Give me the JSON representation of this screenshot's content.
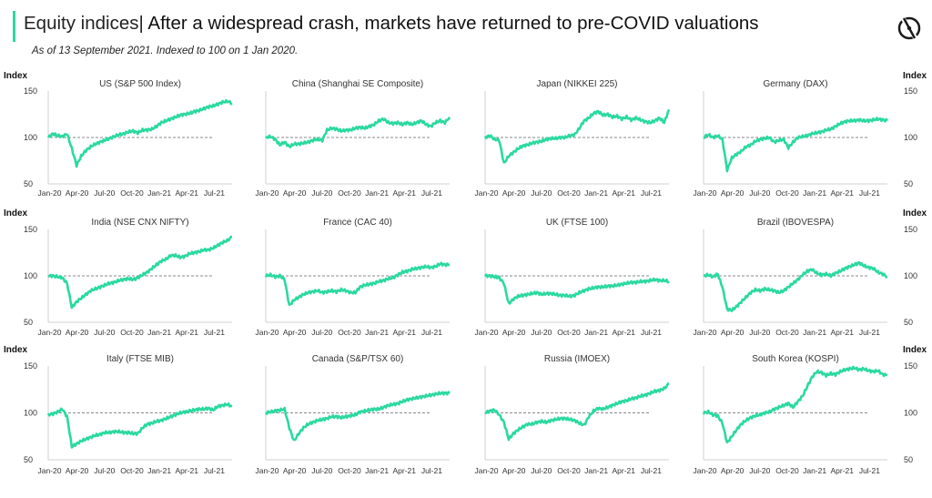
{
  "header": {
    "label": "Equity indices",
    "separator": "|",
    "headline": "After a widespread crash, markets have returned to pre-COVID valuations",
    "subtitle": "As of 13 September 2021. Indexed to 100 on 1 Jan 2020."
  },
  "logo": {
    "icon": "brand-logo-icon"
  },
  "colors": {
    "line": "#2bd99f",
    "reference": "#8a8a8a",
    "axis": "#d0d0d0",
    "text": "#333333"
  },
  "axis_label": "Index",
  "chart_data": [
    {
      "type": "line",
      "title": "US (S&P 500 Index)",
      "ylim": [
        50,
        150
      ],
      "yticks": [
        50,
        100,
        150
      ],
      "xticks": [
        "Jan-20",
        "Apr-20",
        "Jul-20",
        "Oct-20",
        "Jan-21",
        "Apr-21",
        "Jul-21"
      ],
      "reference": 100,
      "values": [
        100,
        104,
        102,
        101,
        104,
        88,
        70,
        80,
        86,
        90,
        93,
        95,
        97,
        99,
        101,
        103,
        104,
        106,
        107,
        105,
        108,
        108,
        109,
        112,
        116,
        118,
        120,
        122,
        124,
        125,
        126,
        128,
        129,
        131,
        133,
        134,
        136,
        138,
        139,
        137
      ]
    },
    {
      "type": "line",
      "title": "China (Shanghai SE Composite)",
      "ylim": [
        50,
        150
      ],
      "yticks": [
        50,
        100,
        150
      ],
      "xticks": [
        "Jan-20",
        "Apr-20",
        "Jul-20",
        "Oct-20",
        "Jan-21",
        "Apr-21",
        "Jul-21"
      ],
      "reference": 100,
      "values": [
        100,
        101,
        98,
        92,
        95,
        90,
        93,
        93,
        94,
        95,
        97,
        98,
        97,
        108,
        110,
        109,
        107,
        108,
        108,
        110,
        111,
        110,
        112,
        114,
        118,
        120,
        116,
        115,
        116,
        114,
        116,
        114,
        116,
        118,
        114,
        112,
        116,
        118,
        116,
        122
      ]
    },
    {
      "type": "line",
      "title": "Japan (NIKKEI 225)",
      "ylim": [
        50,
        150
      ],
      "yticks": [
        50,
        100,
        150
      ],
      "xticks": [
        "Jan-20",
        "Apr-20",
        "Jul-20",
        "Oct-20",
        "Jan-21",
        "Apr-21",
        "Jul-21"
      ],
      "reference": 100,
      "values": [
        100,
        102,
        98,
        97,
        72,
        80,
        84,
        88,
        91,
        92,
        94,
        95,
        96,
        98,
        99,
        99,
        100,
        100,
        102,
        103,
        110,
        118,
        121,
        126,
        128,
        124,
        125,
        122,
        123,
        120,
        122,
        119,
        121,
        119,
        117,
        116,
        118,
        121,
        116,
        130
      ]
    },
    {
      "type": "line",
      "title": "Germany (DAX)",
      "ylim": [
        50,
        150
      ],
      "yticks": [
        50,
        100,
        150
      ],
      "xticks": [
        "Jan-20",
        "Apr-20",
        "Jul-20",
        "Oct-20",
        "Jan-21",
        "Apr-21",
        "Jul-21"
      ],
      "reference": 100,
      "values": [
        100,
        103,
        100,
        102,
        98,
        65,
        78,
        82,
        85,
        90,
        92,
        96,
        98,
        99,
        100,
        95,
        97,
        98,
        89,
        95,
        100,
        101,
        102,
        104,
        105,
        106,
        108,
        109,
        112,
        115,
        117,
        118,
        118,
        119,
        118,
        118,
        119,
        120,
        119,
        118
      ]
    },
    {
      "type": "line",
      "title": "India (NSE CNX NIFTY)",
      "ylim": [
        50,
        150
      ],
      "yticks": [
        50,
        100,
        150
      ],
      "xticks": [
        "Jan-20",
        "Apr-20",
        "Jul-20",
        "Oct-20",
        "Jan-21",
        "Apr-21",
        "Jul-21"
      ],
      "reference": 100,
      "values": [
        100,
        100,
        99,
        98,
        92,
        66,
        72,
        76,
        80,
        84,
        86,
        88,
        90,
        92,
        93,
        95,
        96,
        97,
        96,
        98,
        101,
        104,
        108,
        112,
        116,
        118,
        122,
        122,
        120,
        121,
        124,
        125,
        126,
        128,
        128,
        130,
        133,
        136,
        138,
        142
      ]
    },
    {
      "type": "line",
      "title": "France (CAC 40)",
      "ylim": [
        50,
        150
      ],
      "yticks": [
        50,
        100,
        150
      ],
      "xticks": [
        "Jan-20",
        "Apr-20",
        "Jul-20",
        "Oct-20",
        "Jan-21",
        "Apr-21",
        "Jul-21"
      ],
      "reference": 100,
      "values": [
        100,
        101,
        99,
        100,
        96,
        68,
        74,
        77,
        80,
        82,
        83,
        84,
        82,
        83,
        84,
        83,
        85,
        84,
        82,
        82,
        88,
        90,
        91,
        92,
        94,
        95,
        97,
        98,
        101,
        104,
        105,
        107,
        108,
        109,
        110,
        109,
        110,
        113,
        112,
        112
      ]
    },
    {
      "type": "line",
      "title": "UK (FTSE 100)",
      "ylim": [
        50,
        150
      ],
      "yticks": [
        50,
        100,
        150
      ],
      "xticks": [
        "Jan-20",
        "Apr-20",
        "Jul-20",
        "Oct-20",
        "Jan-21",
        "Apr-21",
        "Jul-21"
      ],
      "reference": 100,
      "values": [
        100,
        100,
        99,
        98,
        92,
        70,
        75,
        78,
        79,
        80,
        81,
        82,
        80,
        81,
        81,
        80,
        79,
        79,
        78,
        79,
        82,
        84,
        86,
        87,
        88,
        88,
        89,
        89,
        90,
        91,
        92,
        93,
        93,
        94,
        94,
        95,
        96,
        95,
        95,
        94
      ]
    },
    {
      "type": "line",
      "title": "Brazil (IBOVESPA)",
      "ylim": [
        50,
        150
      ],
      "yticks": [
        50,
        100,
        150
      ],
      "xticks": [
        "Jan-20",
        "Apr-20",
        "Jul-20",
        "Oct-20",
        "Jan-21",
        "Apr-21",
        "Jul-21"
      ],
      "reference": 100,
      "values": [
        100,
        101,
        99,
        102,
        88,
        64,
        63,
        67,
        72,
        77,
        82,
        85,
        84,
        86,
        85,
        84,
        82,
        84,
        88,
        92,
        96,
        101,
        105,
        107,
        103,
        101,
        102,
        100,
        103,
        105,
        108,
        110,
        112,
        114,
        111,
        109,
        108,
        104,
        102,
        99
      ]
    },
    {
      "type": "line",
      "title": "Italy (FTSE MIB)",
      "ylim": [
        50,
        150
      ],
      "yticks": [
        50,
        100,
        150
      ],
      "xticks": [
        "Jan-20",
        "Apr-20",
        "Jul-20",
        "Oct-20",
        "Jan-21",
        "Apr-21",
        "Jul-21"
      ],
      "reference": 100,
      "values": [
        98,
        99,
        101,
        104,
        96,
        64,
        67,
        70,
        72,
        74,
        76,
        77,
        79,
        79,
        80,
        80,
        79,
        79,
        78,
        78,
        84,
        88,
        89,
        91,
        92,
        94,
        96,
        98,
        100,
        101,
        102,
        103,
        104,
        104,
        105,
        103,
        107,
        108,
        109,
        107
      ]
    },
    {
      "type": "line",
      "title": "Canada (S&P/TSX 60)",
      "ylim": [
        50,
        150
      ],
      "yticks": [
        50,
        100,
        150
      ],
      "xticks": [
        "Jan-20",
        "Apr-20",
        "Jul-20",
        "Oct-20",
        "Jan-21",
        "Apr-21",
        "Jul-21"
      ],
      "reference": 100,
      "values": [
        100,
        101,
        102,
        103,
        104,
        84,
        70,
        78,
        84,
        88,
        90,
        92,
        93,
        94,
        96,
        96,
        95,
        96,
        97,
        98,
        101,
        102,
        103,
        104,
        104,
        106,
        108,
        109,
        110,
        112,
        114,
        115,
        116,
        117,
        118,
        119,
        120,
        121,
        121,
        121
      ]
    },
    {
      "type": "line",
      "title": "Russia (IMOEX)",
      "ylim": [
        50,
        150
      ],
      "yticks": [
        50,
        100,
        150
      ],
      "xticks": [
        "Jan-20",
        "Apr-20",
        "Jul-20",
        "Oct-20",
        "Jan-21",
        "Apr-21",
        "Jul-21"
      ],
      "reference": 100,
      "values": [
        100,
        102,
        103,
        98,
        90,
        72,
        78,
        82,
        85,
        88,
        88,
        90,
        91,
        90,
        92,
        93,
        94,
        94,
        93,
        92,
        89,
        87,
        96,
        102,
        105,
        104,
        106,
        108,
        110,
        112,
        113,
        115,
        116,
        118,
        119,
        121,
        123,
        124,
        126,
        131
      ]
    },
    {
      "type": "line",
      "title": "South Korea (KOSPI)",
      "ylim": [
        50,
        150
      ],
      "yticks": [
        50,
        100,
        150
      ],
      "xticks": [
        "Jan-20",
        "Apr-20",
        "Jul-20",
        "Oct-20",
        "Jan-21",
        "Apr-21",
        "Jul-21"
      ],
      "reference": 100,
      "values": [
        100,
        101,
        98,
        97,
        89,
        68,
        75,
        82,
        88,
        92,
        95,
        97,
        98,
        100,
        101,
        104,
        106,
        108,
        110,
        106,
        112,
        118,
        128,
        138,
        144,
        143,
        140,
        142,
        141,
        144,
        146,
        147,
        148,
        146,
        147,
        145,
        144,
        145,
        141,
        140
      ]
    }
  ]
}
